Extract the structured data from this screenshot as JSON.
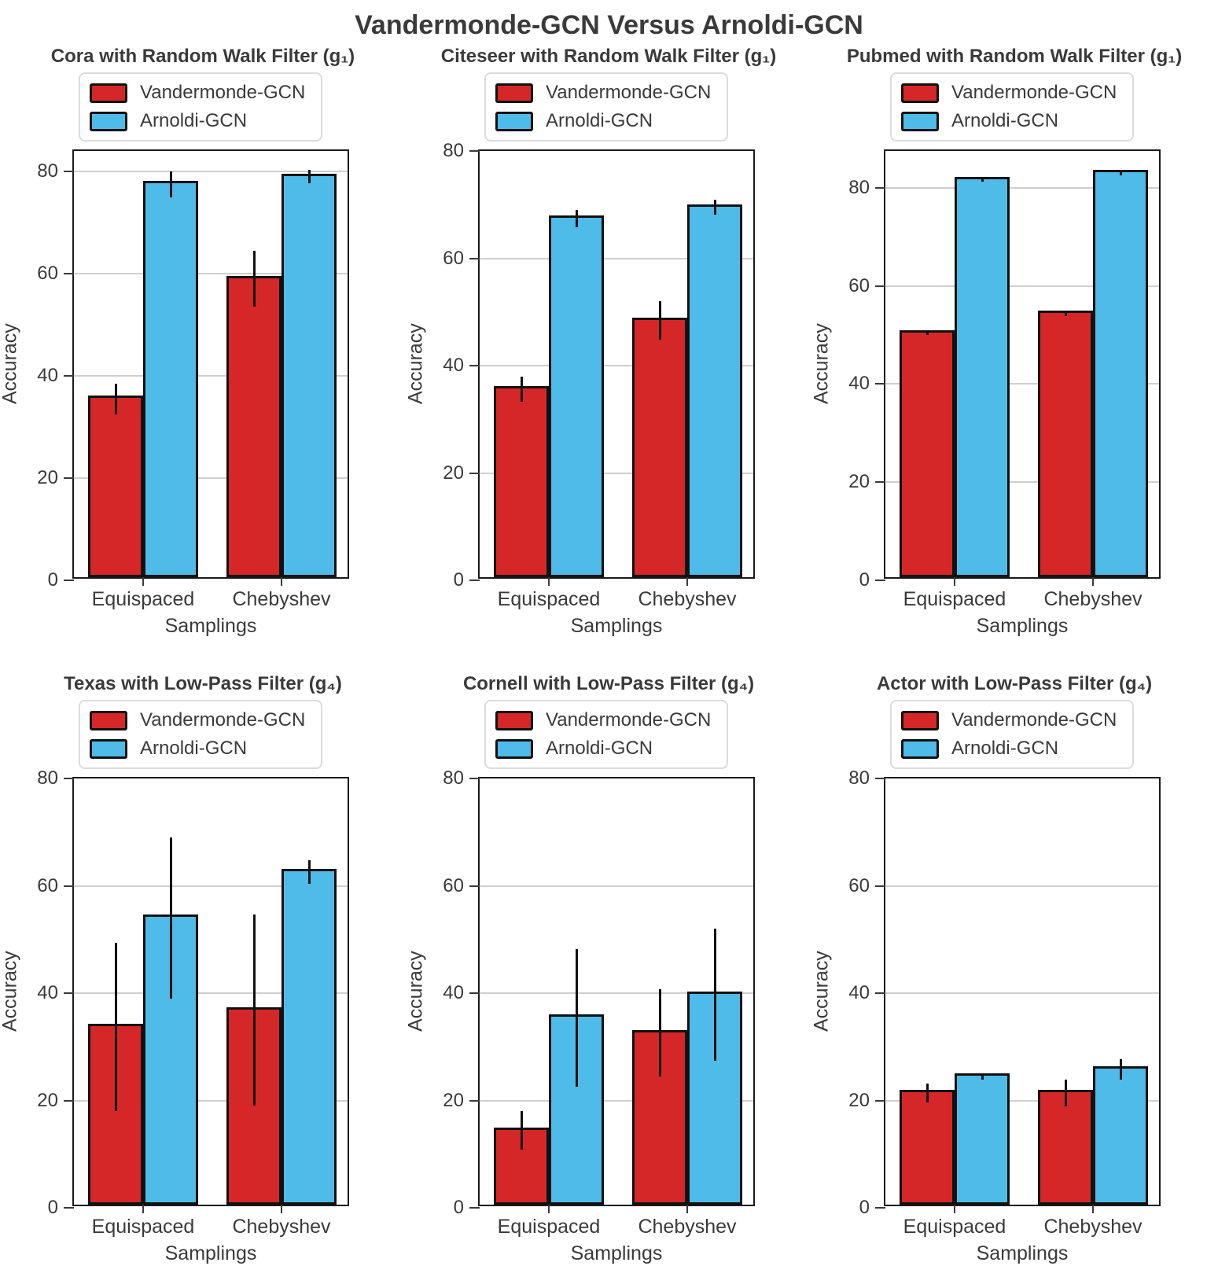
{
  "page_title": "Vandermonde-GCN Versus Arnoldi-GCN",
  "colors": {
    "vandermonde": "#d62728",
    "arnoldi": "#4fbbe9",
    "bar_edge": "#111111",
    "grid": "#cfcfcf",
    "text": "#3a3a3a",
    "legend_border": "#dcdcdc"
  },
  "chart_data": [
    {
      "type": "bar",
      "title": "Cora with Random Walk Filter (g₁)",
      "xlabel": "Samplings",
      "ylabel": "Accuracy",
      "categories": [
        "Equispaced",
        "Chebyshev"
      ],
      "yticks": [
        0,
        20,
        40,
        60,
        80
      ],
      "ylim": [
        0,
        84
      ],
      "grid": true,
      "legend_position": "above-left",
      "series": [
        {
          "name": "Vandermonde-GCN",
          "color_key": "vandermonde",
          "values": [
            35.5,
            59.0
          ],
          "errors": [
            3.0,
            5.5
          ]
        },
        {
          "name": "Arnoldi-GCN",
          "color_key": "arnoldi",
          "values": [
            77.5,
            79.0
          ],
          "errors": [
            2.5,
            1.3
          ]
        }
      ]
    },
    {
      "type": "bar",
      "title": "Citeseer with Random Walk Filter (g₁)",
      "xlabel": "Samplings",
      "ylabel": "Accuracy",
      "categories": [
        "Equispaced",
        "Chebyshev"
      ],
      "yticks": [
        0,
        20,
        40,
        60,
        80
      ],
      "ylim": [
        0,
        80
      ],
      "grid": true,
      "legend_position": "above-left",
      "series": [
        {
          "name": "Vandermonde-GCN",
          "color_key": "vandermonde",
          "values": [
            35.6,
            48.4
          ],
          "errors": [
            2.3,
            3.6
          ]
        },
        {
          "name": "Arnoldi-GCN",
          "color_key": "arnoldi",
          "values": [
            67.4,
            69.5
          ],
          "errors": [
            1.6,
            1.4
          ]
        }
      ]
    },
    {
      "type": "bar",
      "title": "Pubmed with Random Walk Filter (g₁)",
      "xlabel": "Samplings",
      "ylabel": "Accuracy",
      "categories": [
        "Equispaced",
        "Chebyshev"
      ],
      "yticks": [
        0,
        20,
        40,
        60,
        80
      ],
      "ylim": [
        0,
        87.5
      ],
      "grid": true,
      "legend_position": "above-left",
      "series": [
        {
          "name": "Vandermonde-GCN",
          "color_key": "vandermonde",
          "values": [
            50.4,
            54.4
          ],
          "errors": [
            0.4,
            0.5
          ]
        },
        {
          "name": "Arnoldi-GCN",
          "color_key": "arnoldi",
          "values": [
            81.6,
            83.0
          ],
          "errors": [
            0.4,
            0.5
          ]
        }
      ]
    },
    {
      "type": "bar",
      "title": "Texas with Low-Pass Filter (g₄)",
      "xlabel": "Samplings",
      "ylabel": "Accuracy",
      "categories": [
        "Equispaced",
        "Chebyshev"
      ],
      "yticks": [
        0,
        20,
        40,
        60,
        80
      ],
      "ylim": [
        0,
        80
      ],
      "grid": true,
      "legend_position": "above-left",
      "series": [
        {
          "name": "Vandermonde-GCN",
          "color_key": "vandermonde",
          "values": [
            33.7,
            36.8
          ],
          "errors": [
            15.7,
            17.8
          ]
        },
        {
          "name": "Arnoldi-GCN",
          "color_key": "arnoldi",
          "values": [
            54.0,
            62.5
          ],
          "errors": [
            15.0,
            2.2
          ]
        }
      ]
    },
    {
      "type": "bar",
      "title": "Cornell with Low-Pass Filter (g₄)",
      "xlabel": "Samplings",
      "ylabel": "Accuracy",
      "categories": [
        "Equispaced",
        "Chebyshev"
      ],
      "yticks": [
        0,
        20,
        40,
        60,
        80
      ],
      "ylim": [
        0,
        80
      ],
      "grid": true,
      "legend_position": "above-left",
      "series": [
        {
          "name": "Vandermonde-GCN",
          "color_key": "vandermonde",
          "values": [
            14.4,
            32.6
          ],
          "errors": [
            3.6,
            8.2
          ]
        },
        {
          "name": "Arnoldi-GCN",
          "color_key": "arnoldi",
          "values": [
            35.4,
            39.7
          ],
          "errors": [
            12.8,
            12.3
          ]
        }
      ]
    },
    {
      "type": "bar",
      "title": "Actor with Low-Pass Filter (g₄)",
      "xlabel": "Samplings",
      "ylabel": "Accuracy",
      "categories": [
        "Equispaced",
        "Chebyshev"
      ],
      "yticks": [
        0,
        20,
        40,
        60,
        80
      ],
      "ylim": [
        0,
        80
      ],
      "grid": true,
      "legend_position": "above-left",
      "series": [
        {
          "name": "Vandermonde-GCN",
          "color_key": "vandermonde",
          "values": [
            21.4,
            21.4
          ],
          "errors": [
            1.8,
            2.5
          ]
        },
        {
          "name": "Arnoldi-GCN",
          "color_key": "arnoldi",
          "values": [
            24.4,
            25.8
          ],
          "errors": [
            0.5,
            1.9
          ]
        }
      ]
    }
  ]
}
